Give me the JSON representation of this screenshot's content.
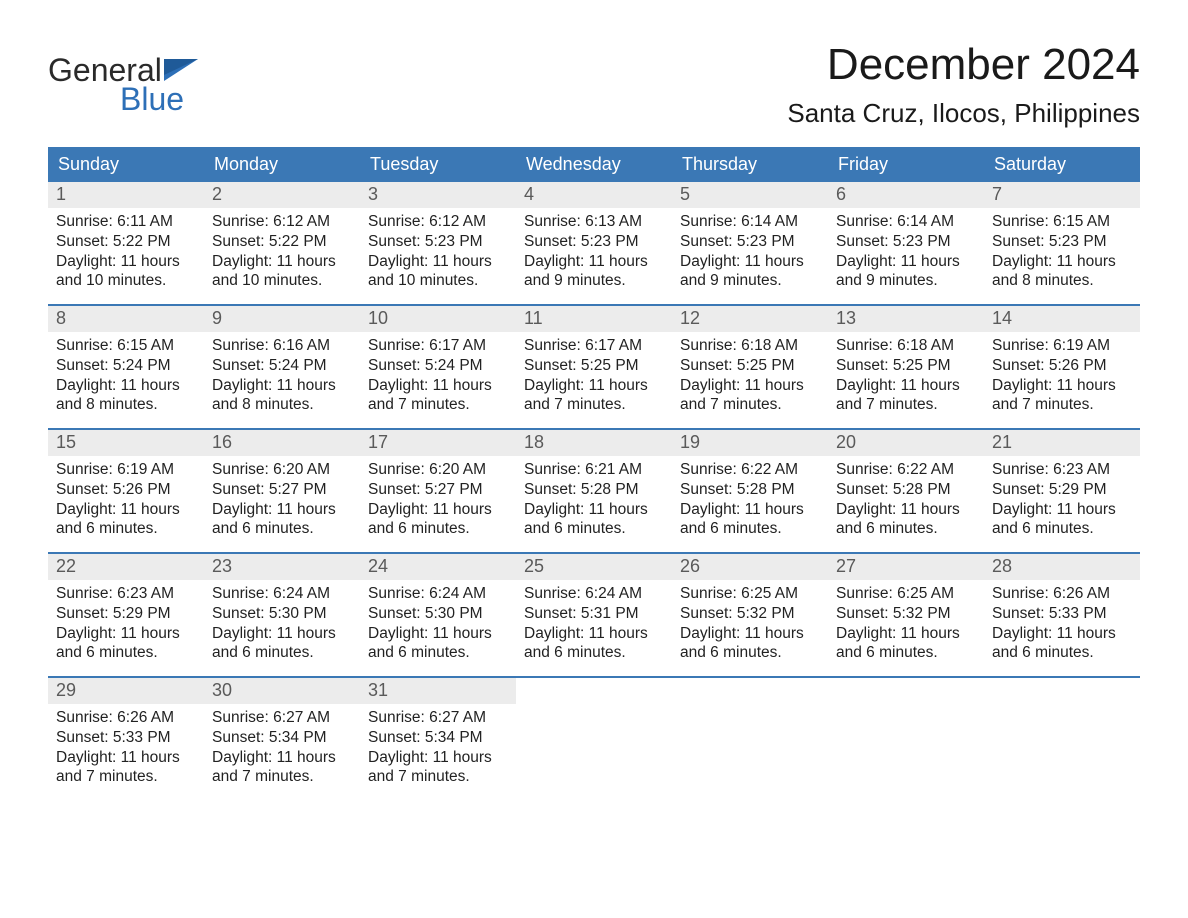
{
  "brand": {
    "part1": "General",
    "part2": "Blue"
  },
  "title": "December 2024",
  "location": "Santa Cruz, Ilocos, Philippines",
  "colors": {
    "header_bg": "#3b78b5",
    "header_text": "#ffffff",
    "daynum_bg": "#ececec",
    "daynum_text": "#5a5a5a",
    "body_text": "#222222",
    "week_border": "#3b78b5",
    "logo_blue": "#2d6fb7",
    "logo_dark": "#2a2a2a"
  },
  "day_headers": [
    "Sunday",
    "Monday",
    "Tuesday",
    "Wednesday",
    "Thursday",
    "Friday",
    "Saturday"
  ],
  "weeks": [
    [
      {
        "n": "1",
        "sunrise": "Sunrise: 6:11 AM",
        "sunset": "Sunset: 5:22 PM",
        "daylight": "Daylight: 11 hours and 10 minutes."
      },
      {
        "n": "2",
        "sunrise": "Sunrise: 6:12 AM",
        "sunset": "Sunset: 5:22 PM",
        "daylight": "Daylight: 11 hours and 10 minutes."
      },
      {
        "n": "3",
        "sunrise": "Sunrise: 6:12 AM",
        "sunset": "Sunset: 5:23 PM",
        "daylight": "Daylight: 11 hours and 10 minutes."
      },
      {
        "n": "4",
        "sunrise": "Sunrise: 6:13 AM",
        "sunset": "Sunset: 5:23 PM",
        "daylight": "Daylight: 11 hours and 9 minutes."
      },
      {
        "n": "5",
        "sunrise": "Sunrise: 6:14 AM",
        "sunset": "Sunset: 5:23 PM",
        "daylight": "Daylight: 11 hours and 9 minutes."
      },
      {
        "n": "6",
        "sunrise": "Sunrise: 6:14 AM",
        "sunset": "Sunset: 5:23 PM",
        "daylight": "Daylight: 11 hours and 9 minutes."
      },
      {
        "n": "7",
        "sunrise": "Sunrise: 6:15 AM",
        "sunset": "Sunset: 5:23 PM",
        "daylight": "Daylight: 11 hours and 8 minutes."
      }
    ],
    [
      {
        "n": "8",
        "sunrise": "Sunrise: 6:15 AM",
        "sunset": "Sunset: 5:24 PM",
        "daylight": "Daylight: 11 hours and 8 minutes."
      },
      {
        "n": "9",
        "sunrise": "Sunrise: 6:16 AM",
        "sunset": "Sunset: 5:24 PM",
        "daylight": "Daylight: 11 hours and 8 minutes."
      },
      {
        "n": "10",
        "sunrise": "Sunrise: 6:17 AM",
        "sunset": "Sunset: 5:24 PM",
        "daylight": "Daylight: 11 hours and 7 minutes."
      },
      {
        "n": "11",
        "sunrise": "Sunrise: 6:17 AM",
        "sunset": "Sunset: 5:25 PM",
        "daylight": "Daylight: 11 hours and 7 minutes."
      },
      {
        "n": "12",
        "sunrise": "Sunrise: 6:18 AM",
        "sunset": "Sunset: 5:25 PM",
        "daylight": "Daylight: 11 hours and 7 minutes."
      },
      {
        "n": "13",
        "sunrise": "Sunrise: 6:18 AM",
        "sunset": "Sunset: 5:25 PM",
        "daylight": "Daylight: 11 hours and 7 minutes."
      },
      {
        "n": "14",
        "sunrise": "Sunrise: 6:19 AM",
        "sunset": "Sunset: 5:26 PM",
        "daylight": "Daylight: 11 hours and 7 minutes."
      }
    ],
    [
      {
        "n": "15",
        "sunrise": "Sunrise: 6:19 AM",
        "sunset": "Sunset: 5:26 PM",
        "daylight": "Daylight: 11 hours and 6 minutes."
      },
      {
        "n": "16",
        "sunrise": "Sunrise: 6:20 AM",
        "sunset": "Sunset: 5:27 PM",
        "daylight": "Daylight: 11 hours and 6 minutes."
      },
      {
        "n": "17",
        "sunrise": "Sunrise: 6:20 AM",
        "sunset": "Sunset: 5:27 PM",
        "daylight": "Daylight: 11 hours and 6 minutes."
      },
      {
        "n": "18",
        "sunrise": "Sunrise: 6:21 AM",
        "sunset": "Sunset: 5:28 PM",
        "daylight": "Daylight: 11 hours and 6 minutes."
      },
      {
        "n": "19",
        "sunrise": "Sunrise: 6:22 AM",
        "sunset": "Sunset: 5:28 PM",
        "daylight": "Daylight: 11 hours and 6 minutes."
      },
      {
        "n": "20",
        "sunrise": "Sunrise: 6:22 AM",
        "sunset": "Sunset: 5:28 PM",
        "daylight": "Daylight: 11 hours and 6 minutes."
      },
      {
        "n": "21",
        "sunrise": "Sunrise: 6:23 AM",
        "sunset": "Sunset: 5:29 PM",
        "daylight": "Daylight: 11 hours and 6 minutes."
      }
    ],
    [
      {
        "n": "22",
        "sunrise": "Sunrise: 6:23 AM",
        "sunset": "Sunset: 5:29 PM",
        "daylight": "Daylight: 11 hours and 6 minutes."
      },
      {
        "n": "23",
        "sunrise": "Sunrise: 6:24 AM",
        "sunset": "Sunset: 5:30 PM",
        "daylight": "Daylight: 11 hours and 6 minutes."
      },
      {
        "n": "24",
        "sunrise": "Sunrise: 6:24 AM",
        "sunset": "Sunset: 5:30 PM",
        "daylight": "Daylight: 11 hours and 6 minutes."
      },
      {
        "n": "25",
        "sunrise": "Sunrise: 6:24 AM",
        "sunset": "Sunset: 5:31 PM",
        "daylight": "Daylight: 11 hours and 6 minutes."
      },
      {
        "n": "26",
        "sunrise": "Sunrise: 6:25 AM",
        "sunset": "Sunset: 5:32 PM",
        "daylight": "Daylight: 11 hours and 6 minutes."
      },
      {
        "n": "27",
        "sunrise": "Sunrise: 6:25 AM",
        "sunset": "Sunset: 5:32 PM",
        "daylight": "Daylight: 11 hours and 6 minutes."
      },
      {
        "n": "28",
        "sunrise": "Sunrise: 6:26 AM",
        "sunset": "Sunset: 5:33 PM",
        "daylight": "Daylight: 11 hours and 6 minutes."
      }
    ],
    [
      {
        "n": "29",
        "sunrise": "Sunrise: 6:26 AM",
        "sunset": "Sunset: 5:33 PM",
        "daylight": "Daylight: 11 hours and 7 minutes."
      },
      {
        "n": "30",
        "sunrise": "Sunrise: 6:27 AM",
        "sunset": "Sunset: 5:34 PM",
        "daylight": "Daylight: 11 hours and 7 minutes."
      },
      {
        "n": "31",
        "sunrise": "Sunrise: 6:27 AM",
        "sunset": "Sunset: 5:34 PM",
        "daylight": "Daylight: 11 hours and 7 minutes."
      },
      {
        "empty": true
      },
      {
        "empty": true
      },
      {
        "empty": true
      },
      {
        "empty": true
      }
    ]
  ]
}
